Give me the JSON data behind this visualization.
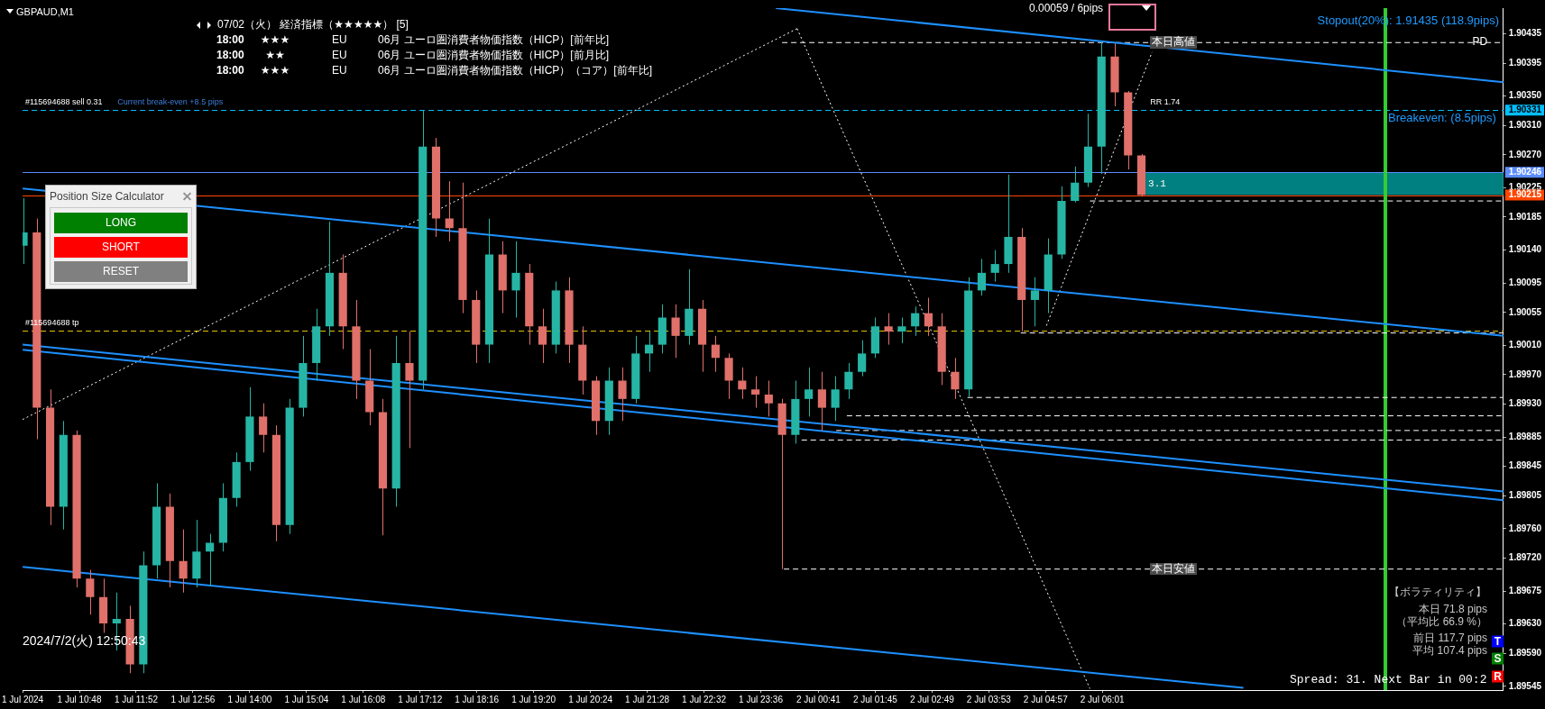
{
  "chart_data": {
    "type": "candlestick",
    "title": "GBPAUD,M1",
    "x": [
      "2024-07-01T09:45",
      "2024-07-01T10:00",
      "2024-07-01T10:15",
      "2024-07-01T10:30",
      "2024-07-01T10:45",
      "2024-07-01T11:00",
      "2024-07-01T11:15",
      "2024-07-01T11:30",
      "2024-07-01T11:45",
      "2024-07-01T12:00",
      "2024-07-01T12:15",
      "2024-07-01T12:30",
      "2024-07-01T12:45",
      "2024-07-01T13:00",
      "2024-07-01T13:15",
      "2024-07-01T13:30",
      "2024-07-01T13:45",
      "2024-07-01T14:00",
      "2024-07-01T14:15",
      "2024-07-01T14:30",
      "2024-07-01T14:45",
      "2024-07-01T15:00",
      "2024-07-01T15:15",
      "2024-07-01T15:30",
      "2024-07-01T15:45",
      "2024-07-01T16:00",
      "2024-07-01T16:15",
      "2024-07-01T16:30",
      "2024-07-01T16:45",
      "2024-07-01T17:00",
      "2024-07-01T17:15",
      "2024-07-01T17:30",
      "2024-07-01T17:45",
      "2024-07-01T18:00",
      "2024-07-01T18:15",
      "2024-07-01T18:30",
      "2024-07-01T18:45",
      "2024-07-01T19:00",
      "2024-07-01T19:15",
      "2024-07-01T19:30",
      "2024-07-01T19:45",
      "2024-07-01T20:00",
      "2024-07-01T20:15",
      "2024-07-01T20:30",
      "2024-07-01T20:45",
      "2024-07-01T21:00",
      "2024-07-01T21:15",
      "2024-07-01T21:30",
      "2024-07-01T21:45",
      "2024-07-01T22:00",
      "2024-07-01T22:15",
      "2024-07-01T22:30",
      "2024-07-01T22:45",
      "2024-07-01T23:00",
      "2024-07-01T23:15",
      "2024-07-01T23:30",
      "2024-07-01T23:45",
      "2024-07-02T00:00",
      "2024-07-02T00:15",
      "2024-07-02T00:30",
      "2024-07-02T00:45",
      "2024-07-02T01:00",
      "2024-07-02T01:15",
      "2024-07-02T01:30",
      "2024-07-02T01:45",
      "2024-07-02T02:00",
      "2024-07-02T02:15",
      "2024-07-02T02:30",
      "2024-07-02T02:45",
      "2024-07-02T03:00",
      "2024-07-02T03:15",
      "2024-07-02T03:30",
      "2024-07-02T03:45",
      "2024-07-02T04:00",
      "2024-07-02T04:15",
      "2024-07-02T04:30",
      "2024-07-02T04:45",
      "2024-07-02T05:00",
      "2024-07-02T05:15",
      "2024-07-02T05:30",
      "2024-07-02T05:45",
      "2024-07-02T06:00",
      "2024-07-02T06:15",
      "2024-07-02T06:30",
      "2024-07-02T06:45"
    ],
    "ohlc": [
      [
        1.90146,
        1.90211,
        1.90121,
        1.90164
      ],
      [
        1.90164,
        1.90183,
        1.89882,
        1.89925
      ],
      [
        1.89925,
        1.8995,
        1.89765,
        1.8979
      ],
      [
        1.8979,
        1.89907,
        1.89759,
        1.89888
      ],
      [
        1.89888,
        1.89894,
        1.8968,
        1.89692
      ],
      [
        1.89692,
        1.89704,
        1.89643,
        1.89667
      ],
      [
        1.89667,
        1.89692,
        1.89618,
        1.89631
      ],
      [
        1.89631,
        1.89673,
        1.89594,
        1.89637
      ],
      [
        1.89637,
        1.89655,
        1.89563,
        1.89575
      ],
      [
        1.89575,
        1.89729,
        1.89563,
        1.8971
      ],
      [
        1.8971,
        1.89822,
        1.89692,
        1.8979
      ],
      [
        1.8979,
        1.89808,
        1.8968,
        1.89716
      ],
      [
        1.89716,
        1.89759,
        1.89673,
        1.89692
      ],
      [
        1.89692,
        1.89772,
        1.8968,
        1.89729
      ],
      [
        1.89729,
        1.89753,
        1.89682,
        1.89741
      ],
      [
        1.89741,
        1.89822,
        1.89729,
        1.89802
      ],
      [
        1.89802,
        1.89864,
        1.8979,
        1.89851
      ],
      [
        1.89851,
        1.89953,
        1.89839,
        1.89913
      ],
      [
        1.89913,
        1.89931,
        1.89864,
        1.89888
      ],
      [
        1.89888,
        1.89901,
        1.89743,
        1.89765
      ],
      [
        1.89765,
        1.89937,
        1.89753,
        1.89925
      ],
      [
        1.89925,
        1.90023,
        1.89913,
        1.89986
      ],
      [
        1.89986,
        1.9006,
        1.89962,
        1.90036
      ],
      [
        1.90036,
        1.90179,
        1.90023,
        1.90109
      ],
      [
        1.90109,
        1.90134,
        1.90005,
        1.90036
      ],
      [
        1.90036,
        1.90072,
        1.89937,
        1.89962
      ],
      [
        1.89962,
        1.90005,
        1.89901,
        1.89919
      ],
      [
        1.89919,
        1.89937,
        1.89751,
        1.89815
      ],
      [
        1.89815,
        1.90023,
        1.8979,
        1.89986
      ],
      [
        1.89986,
        1.90029,
        1.8987,
        1.89962
      ],
      [
        1.89962,
        1.9033,
        1.8995,
        1.90281
      ],
      [
        1.90281,
        1.90293,
        1.90158,
        1.90183
      ],
      [
        1.90183,
        1.90234,
        1.90152,
        1.9017
      ],
      [
        1.9017,
        1.90232,
        1.90054,
        1.90072
      ],
      [
        1.90072,
        1.90085,
        1.89986,
        1.90011
      ],
      [
        1.90011,
        1.90183,
        1.89986,
        1.90134
      ],
      [
        1.90134,
        1.90152,
        1.90054,
        1.90085
      ],
      [
        1.90085,
        1.90152,
        1.90048,
        1.90109
      ],
      [
        1.90109,
        1.90121,
        1.90011,
        1.90036
      ],
      [
        1.90036,
        1.9006,
        1.89986,
        1.90011
      ],
      [
        1.90011,
        1.90097,
        1.89999,
        1.90085
      ],
      [
        1.90085,
        1.90103,
        1.89986,
        1.90011
      ],
      [
        1.90011,
        1.90036,
        1.89943,
        1.89962
      ],
      [
        1.89962,
        1.89968,
        1.89888,
        1.89907
      ],
      [
        1.89907,
        1.8998,
        1.89888,
        1.89962
      ],
      [
        1.89962,
        1.8998,
        1.89907,
        1.89937
      ],
      [
        1.89937,
        1.90023,
        1.89931,
        1.89999
      ],
      [
        1.89999,
        1.90029,
        1.89974,
        1.90011
      ],
      [
        1.90011,
        1.90066,
        1.89999,
        1.90048
      ],
      [
        1.90048,
        1.90066,
        1.89993,
        1.90023
      ],
      [
        1.90023,
        1.90114,
        1.90011,
        1.9006
      ],
      [
        1.9006,
        1.90072,
        1.89974,
        1.90011
      ],
      [
        1.90011,
        1.90023,
        1.89974,
        1.89993
      ],
      [
        1.89993,
        1.89999,
        1.89937,
        1.89962
      ],
      [
        1.89962,
        1.8998,
        1.89937,
        1.8995
      ],
      [
        1.8995,
        1.89968,
        1.89925,
        1.89943
      ],
      [
        1.89943,
        1.89962,
        1.89913,
        1.89931
      ],
      [
        1.89931,
        1.89937,
        1.89705,
        1.89888
      ],
      [
        1.89888,
        1.89962,
        1.89876,
        1.89937
      ],
      [
        1.89937,
        1.8998,
        1.89913,
        1.8995
      ],
      [
        1.8995,
        1.89974,
        1.89894,
        1.89925
      ],
      [
        1.89925,
        1.89968,
        1.89907,
        1.8995
      ],
      [
        1.8995,
        1.89986,
        1.89937,
        1.89974
      ],
      [
        1.89974,
        1.90017,
        1.89968,
        1.89999
      ],
      [
        1.89999,
        1.90048,
        1.89993,
        1.90036
      ],
      [
        1.90036,
        1.90054,
        1.90011,
        1.90029
      ],
      [
        1.90029,
        1.90048,
        1.90013,
        1.90036
      ],
      [
        1.90036,
        1.90063,
        1.90023,
        1.90054
      ],
      [
        1.90054,
        1.90075,
        1.90023,
        1.90036
      ],
      [
        1.90036,
        1.90054,
        1.89956,
        1.89974
      ],
      [
        1.89974,
        1.89993,
        1.89937,
        1.8995
      ],
      [
        1.8995,
        1.90103,
        1.8994,
        1.90085
      ],
      [
        1.90085,
        1.90128,
        1.90078,
        1.90109
      ],
      [
        1.90109,
        1.9014,
        1.90097,
        1.90121
      ],
      [
        1.90121,
        1.90243,
        1.90109,
        1.90158
      ],
      [
        1.90158,
        1.9017,
        1.90029,
        1.90072
      ],
      [
        1.90072,
        1.90103,
        1.90036,
        1.90085
      ],
      [
        1.90085,
        1.90156,
        1.90054,
        1.90134
      ],
      [
        1.90134,
        1.90227,
        1.90128,
        1.90207
      ],
      [
        1.90207,
        1.90254,
        1.90205,
        1.90232
      ],
      [
        1.90232,
        1.90326,
        1.90226,
        1.90281
      ],
      [
        1.90281,
        1.90423,
        1.90244,
        1.90404
      ],
      [
        1.90404,
        1.90422,
        1.90336,
        1.90355
      ],
      [
        1.90355,
        1.90357,
        1.9025,
        1.90269
      ],
      [
        1.90269,
        1.90271,
        1.90213,
        1.90215
      ]
    ],
    "series": [
      {
        "type": "line",
        "x": [
          "2024-07-01T23:53",
          "2024-07-02T13:33"
        ],
        "values": [
          1.9047,
          1.90369
        ],
        "color": "#1e90ff"
      },
      {
        "type": "line",
        "x": [
          "2024-07-01T09:44",
          "2024-07-02T13:33"
        ],
        "values": [
          1.90224,
          1.90023
        ],
        "color": "#1e90ff"
      },
      {
        "type": "line",
        "x": [
          "2024-07-01T09:44",
          "2024-07-02T13:33"
        ],
        "values": [
          1.90011,
          1.89811
        ],
        "color": "#1e90ff"
      },
      {
        "type": "line",
        "x": [
          "2024-07-01T09:44",
          "2024-07-02T13:33"
        ],
        "values": [
          1.90004,
          1.89799
        ],
        "color": "#1e90ff"
      },
      {
        "type": "line",
        "x": [
          "2024-07-01T09:44",
          "2024-07-02T08:40"
        ],
        "values": [
          1.89708,
          1.89543
        ],
        "color": "#1e90ff"
      },
      {
        "type": "line",
        "x": [
          "2024-07-01T09:44",
          "2024-07-02T00:17"
        ],
        "values": [
          1.89909,
          1.90442
        ],
        "color": "#ffffff",
        "line_style": "dotted"
      },
      {
        "type": "line",
        "x": [
          "2024-07-02T00:17",
          "2024-07-02T05:47"
        ],
        "values": [
          1.90442,
          1.89542
        ],
        "color": "#ffffff",
        "line_style": "dotted"
      },
      {
        "type": "line",
        "x": [
          "2024-07-02T04:58",
          "2024-07-02T06:57"
        ],
        "values": [
          1.90037,
          1.9041
        ],
        "color": "#ffffff",
        "line_style": "dotted"
      },
      {
        "type": "line",
        "x": [
          "2024-07-02T00:00",
          "2024-07-02T13:33"
        ],
        "values": [
          1.90423,
          1.90423
        ],
        "color": "#ffffff",
        "line_style": "dashed"
      },
      {
        "type": "line",
        "x": [
          "2024-07-02T00:02",
          "2024-07-02T13:33"
        ],
        "values": [
          1.89705,
          1.89705
        ],
        "color": "#ffffff",
        "line_style": "dashed"
      },
      {
        "type": "line",
        "x": [
          "2024-07-02T05:47",
          "2024-07-02T13:33"
        ],
        "values": [
          1.90207,
          1.90207
        ],
        "color": "#ffffff",
        "line_style": "dashed"
      },
      {
        "type": "line",
        "x": [
          "2024-07-02T04:29",
          "2024-07-02T13:33"
        ],
        "values": [
          1.90027,
          1.90027
        ],
        "color": "#ffffff",
        "line_style": "dashed"
      },
      {
        "type": "line",
        "x": [
          "2024-07-02T03:29",
          "2024-07-02T13:33"
        ],
        "values": [
          1.89939,
          1.89939
        ],
        "color": "#ffffff",
        "line_style": "dashed"
      },
      {
        "type": "line",
        "x": [
          "2024-07-02T01:13",
          "2024-07-02T13:33"
        ],
        "values": [
          1.89914,
          1.89914
        ],
        "color": "#ffffff",
        "line_style": "dashed"
      },
      {
        "type": "line",
        "x": [
          "2024-07-02T01:01",
          "2024-07-02T13:33"
        ],
        "values": [
          1.89894,
          1.89894
        ],
        "color": "#ffffff",
        "line_style": "dashed"
      },
      {
        "type": "line",
        "x": [
          "2024-07-02T00:22",
          "2024-07-02T13:33"
        ],
        "values": [
          1.89881,
          1.89881
        ],
        "color": "#ffffff",
        "line_style": "dashed"
      }
    ],
    "ref_lines": [
      {
        "axis": "y",
        "value": 1.90331,
        "label": "1.90331",
        "color": "#00bfff",
        "line_style": "dashed"
      },
      {
        "axis": "y",
        "value": 1.90246,
        "label": "1.90246",
        "color": "#5b8cff"
      },
      {
        "axis": "y",
        "value": 1.90215,
        "label": "1.90215",
        "color": "#ff4500"
      },
      {
        "axis": "y",
        "value": 1.9003,
        "color": "#e6c200",
        "line_style": "dashed"
      },
      {
        "axis": "x",
        "value": "2024-07-02T11:20",
        "color": "#33cc33"
      }
    ],
    "bands": [
      {
        "axis": "y",
        "from": 1.90215,
        "to": 1.90246,
        "label": "3.1",
        "color": "#008080"
      }
    ],
    "xlim": [
      "2024-07-01T09:44",
      "2024-07-02T13:33"
    ],
    "xticks": [
      {
        "value": "2024-07-01T09:44",
        "label": "1 Jul 2024"
      },
      {
        "value": "2024-07-01T10:48",
        "label": "1 Jul 10:48"
      },
      {
        "value": "2024-07-01T11:52",
        "label": "1 Jul 11:52"
      },
      {
        "value": "2024-07-01T12:56",
        "label": "1 Jul 12:56"
      },
      {
        "value": "2024-07-01T14:00",
        "label": "1 Jul 14:00"
      },
      {
        "value": "2024-07-01T15:04",
        "label": "1 Jul 15:04"
      },
      {
        "value": "2024-07-01T16:08",
        "label": "1 Jul 16:08"
      },
      {
        "value": "2024-07-01T17:12",
        "label": "1 Jul 17:12"
      },
      {
        "value": "2024-07-01T18:16",
        "label": "1 Jul 18:16"
      },
      {
        "value": "2024-07-01T19:20",
        "label": "1 Jul 19:20"
      },
      {
        "value": "2024-07-01T20:24",
        "label": "1 Jul 20:24"
      },
      {
        "value": "2024-07-01T21:28",
        "label": "1 Jul 21:28"
      },
      {
        "value": "2024-07-01T22:32",
        "label": "1 Jul 22:32"
      },
      {
        "value": "2024-07-01T23:36",
        "label": "1 Jul 23:36"
      },
      {
        "value": "2024-07-02T00:41",
        "label": "2 Jul 00:41"
      },
      {
        "value": "2024-07-02T01:45",
        "label": "2 Jul 01:45"
      },
      {
        "value": "2024-07-02T02:49",
        "label": "2 Jul 02:49"
      },
      {
        "value": "2024-07-02T03:53",
        "label": "2 Jul 03:53"
      },
      {
        "value": "2024-07-02T04:57",
        "label": "2 Jul 04:57"
      },
      {
        "value": "2024-07-02T06:01",
        "label": "2 Jul 06:01"
      }
    ],
    "ylim": [
      1.8954,
      1.9047
    ],
    "yticks": [
      1.89545,
      {
        "value": 1.8959,
        "label": "1.89590"
      },
      {
        "value": 1.8963,
        "label": "1.89630"
      },
      1.89675,
      {
        "value": 1.8972,
        "label": "1.89720"
      },
      {
        "value": 1.8976,
        "label": "1.89760"
      },
      1.89805,
      1.89845,
      1.89885,
      {
        "value": 1.8993,
        "label": "1.89930"
      },
      {
        "value": 1.8997,
        "label": "1.89970"
      },
      {
        "value": 1.9001,
        "label": "1.90010"
      },
      1.90055,
      1.90095,
      {
        "value": 1.9014,
        "label": "1.90140"
      },
      1.90185,
      1.90225,
      {
        "value": 1.9027,
        "label": "1.90270"
      },
      {
        "value": 1.9031,
        "label": "1.90310"
      },
      {
        "value": 1.9035,
        "label": "1.90350"
      },
      1.90395,
      1.90435
    ],
    "annotations": [
      "07/02（火） 経済指標（★★★★★） [5]",
      "18:00  ★★★  EU  06月 ユーロ圏消費者物価指数（HICP）[前年比]",
      "18:00  ★★  EU  06月 ユーロ圏消費者物価指数（HICP）[前月比]",
      "18:00  ★★★  EU  06月 ユーロ圏消費者物価指数（HICP）（コア）[前年比]",
      {
        "text": "#115694688 sell 0.31",
        "x": "2024-07-01T09:47",
        "y": 1.90331
      },
      {
        "text": "Current break-even +8.5 pips",
        "x": "2024-07-01T11:31",
        "y": 1.90331
      },
      {
        "text": "#115694688 tp",
        "x": "2024-07-01T09:47",
        "y": 1.9003
      },
      {
        "text": "RR 1.74",
        "x": "2024-07-02T06:55",
        "y": 1.90331
      },
      {
        "text": "Breakeven: (8.5pips)",
        "x": "2024-07-02T11:23",
        "y": 1.90331
      },
      {
        "text": "本日高値",
        "x": "2024-07-02T06:55",
        "y": 1.90423
      },
      {
        "text": "PD",
        "x": "2024-07-02T12:58",
        "y": 1.90423
      },
      {
        "text": "本日安値",
        "x": "2024-07-02T06:55",
        "y": 1.89705
      },
      "Stopout(20%): 1.91435 (118.9pips)",
      "0.00059 / 6pips",
      "2024/7/2(火) 12:50:43",
      "【ボラティリティ】",
      "本日 71.8 pips",
      "（平均比 66.9 %）",
      "前日 117.7 pips",
      "平均 107.4 pips",
      "Spread: 31. Next Bar in 00:2",
      "T",
      "S",
      "R",
      "Position Size Calculator",
      "LONG",
      "SHORT",
      "RESET"
    ]
  }
}
